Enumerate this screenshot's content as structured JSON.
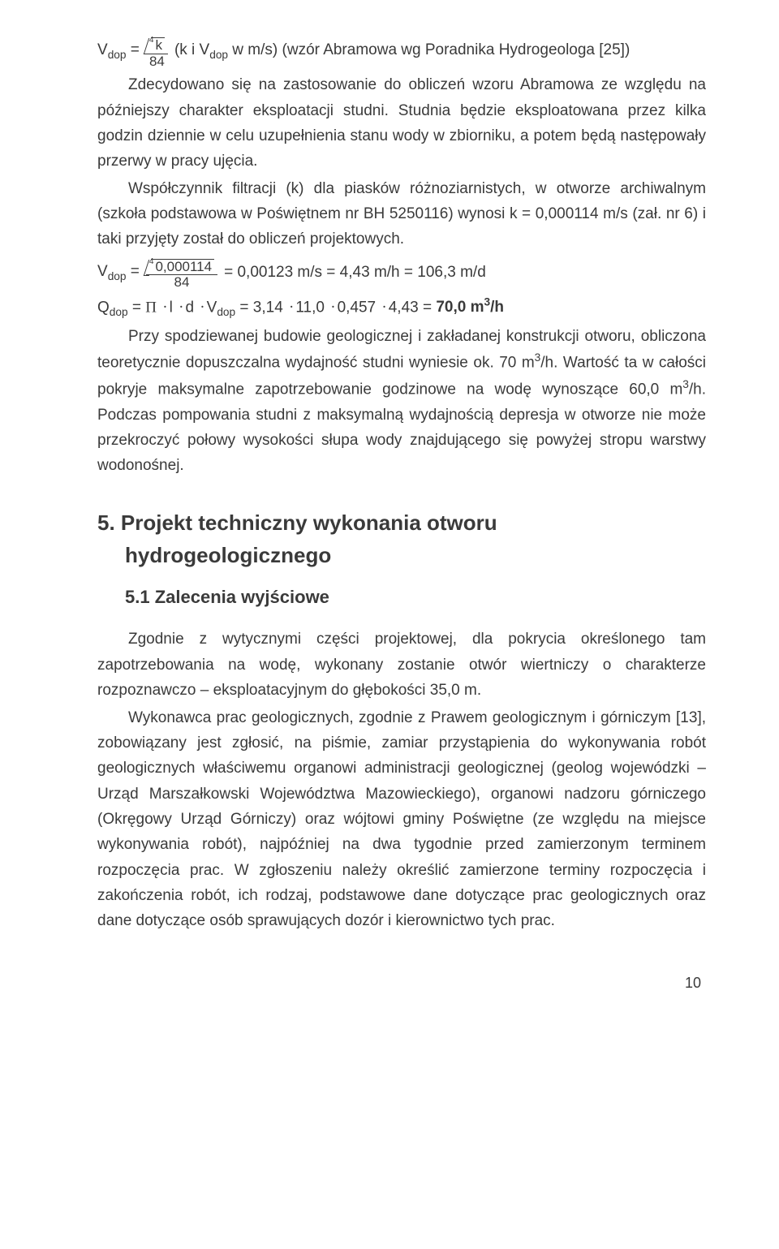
{
  "formula1": {
    "lhs_pre": "V",
    "lhs_sub": "dop",
    "eq": " = ",
    "root_idx": "4",
    "root_arg": "k",
    "den": "84",
    "tail_a": " (k i V",
    "tail_sub": "dop",
    "tail_b": " w m/s) (wzór Abramowa wg Poradnika Hydrogeologa [25])"
  },
  "p1": "Zdecydowano się na zastosowanie do obliczeń wzoru Abramowa ze względu na późniejszy charakter eksploatacji studni. Studnia będzie eksploatowana przez kilka godzin dziennie w celu uzupełnienia stanu wody w zbiorniku, a potem będą następowały przerwy w pracy ujęcia.",
  "p2": "Współczynnik filtracji (k) dla piasków różnoziarnistych, w otworze archiwalnym (szkoła podstawowa w Poświętnem nr BH 5250116) wynosi k = 0,000114 m/s (zał. nr 6) i taki przyjęty został do obliczeń projektowych.",
  "formula2": {
    "lhs_pre": "V",
    "lhs_sub": "dop",
    "eq": " = ",
    "root_idx": "4",
    "root_arg": "0,000114",
    "den": "84",
    "tail": " = 0,00123 m/s = 4,43 m/h = 106,3 m/d"
  },
  "formula3": {
    "a": "Q",
    "asub": "dop",
    "b": " = ",
    "pi": "Π",
    "c": "l",
    "d": "d",
    "e_pre": "V",
    "e_sub": "dop",
    "f": " = 3,14",
    "g": "11,0",
    "h": "0,457",
    "i": "4,43 = ",
    "res": "70,0 m",
    "exp": "3",
    "unit": "/h"
  },
  "p3a": "Przy spodziewanej budowie geologicznej i zakładanej konstrukcji otworu, obliczona teoretycznie dopuszczalna wydajność studni wyniesie ok. 70 m",
  "p3exp": "3",
  "p3b": "/h. Wartość ta w całości pokryje maksymalne zapotrzebowanie godzinowe na wodę wynoszące 60,0 m",
  "p3exp2": "3",
  "p3c": "/h. Podczas pompowania studni z maksymalną wydajnością depresja w otworze nie może przekroczyć połowy wysokości słupa wody znajdującego się powyżej stropu warstwy wodonośnej.",
  "h2a": "5. Projekt techniczny wykonania otworu",
  "h2b": "hydrogeologicznego",
  "h3": "5.1 Zalecenia wyjściowe",
  "p4": "Zgodnie z wytycznymi części projektowej, dla pokrycia określonego tam zapotrzebowania na wodę, wykonany zostanie otwór wiertniczy o charakterze rozpoznawczo – eksploatacyjnym do głębokości 35,0 m.",
  "p5": "Wykonawca prac geologicznych, zgodnie z Prawem geologicznym i górniczym [13], zobowiązany jest zgłosić, na piśmie, zamiar przystąpienia do wykonywania robót geologicznych właściwemu organowi administracji geologicznej (geolog wojewódzki – Urząd Marszałkowski Województwa Mazowieckiego), organowi nadzoru górniczego (Okręgowy Urząd Górniczy) oraz wójtowi gminy Poświętne (ze względu na miejsce wykonywania robót), najpóźniej na dwa tygodnie przed zamierzonym terminem rozpoczęcia prac. W zgłoszeniu należy określić zamierzone terminy rozpoczęcia i zakończenia robót, ich rodzaj, podstawowe dane dotyczące prac geologicznych oraz dane dotyczące osób sprawujących dozór i kierownictwo tych prac.",
  "pagenum": "10"
}
